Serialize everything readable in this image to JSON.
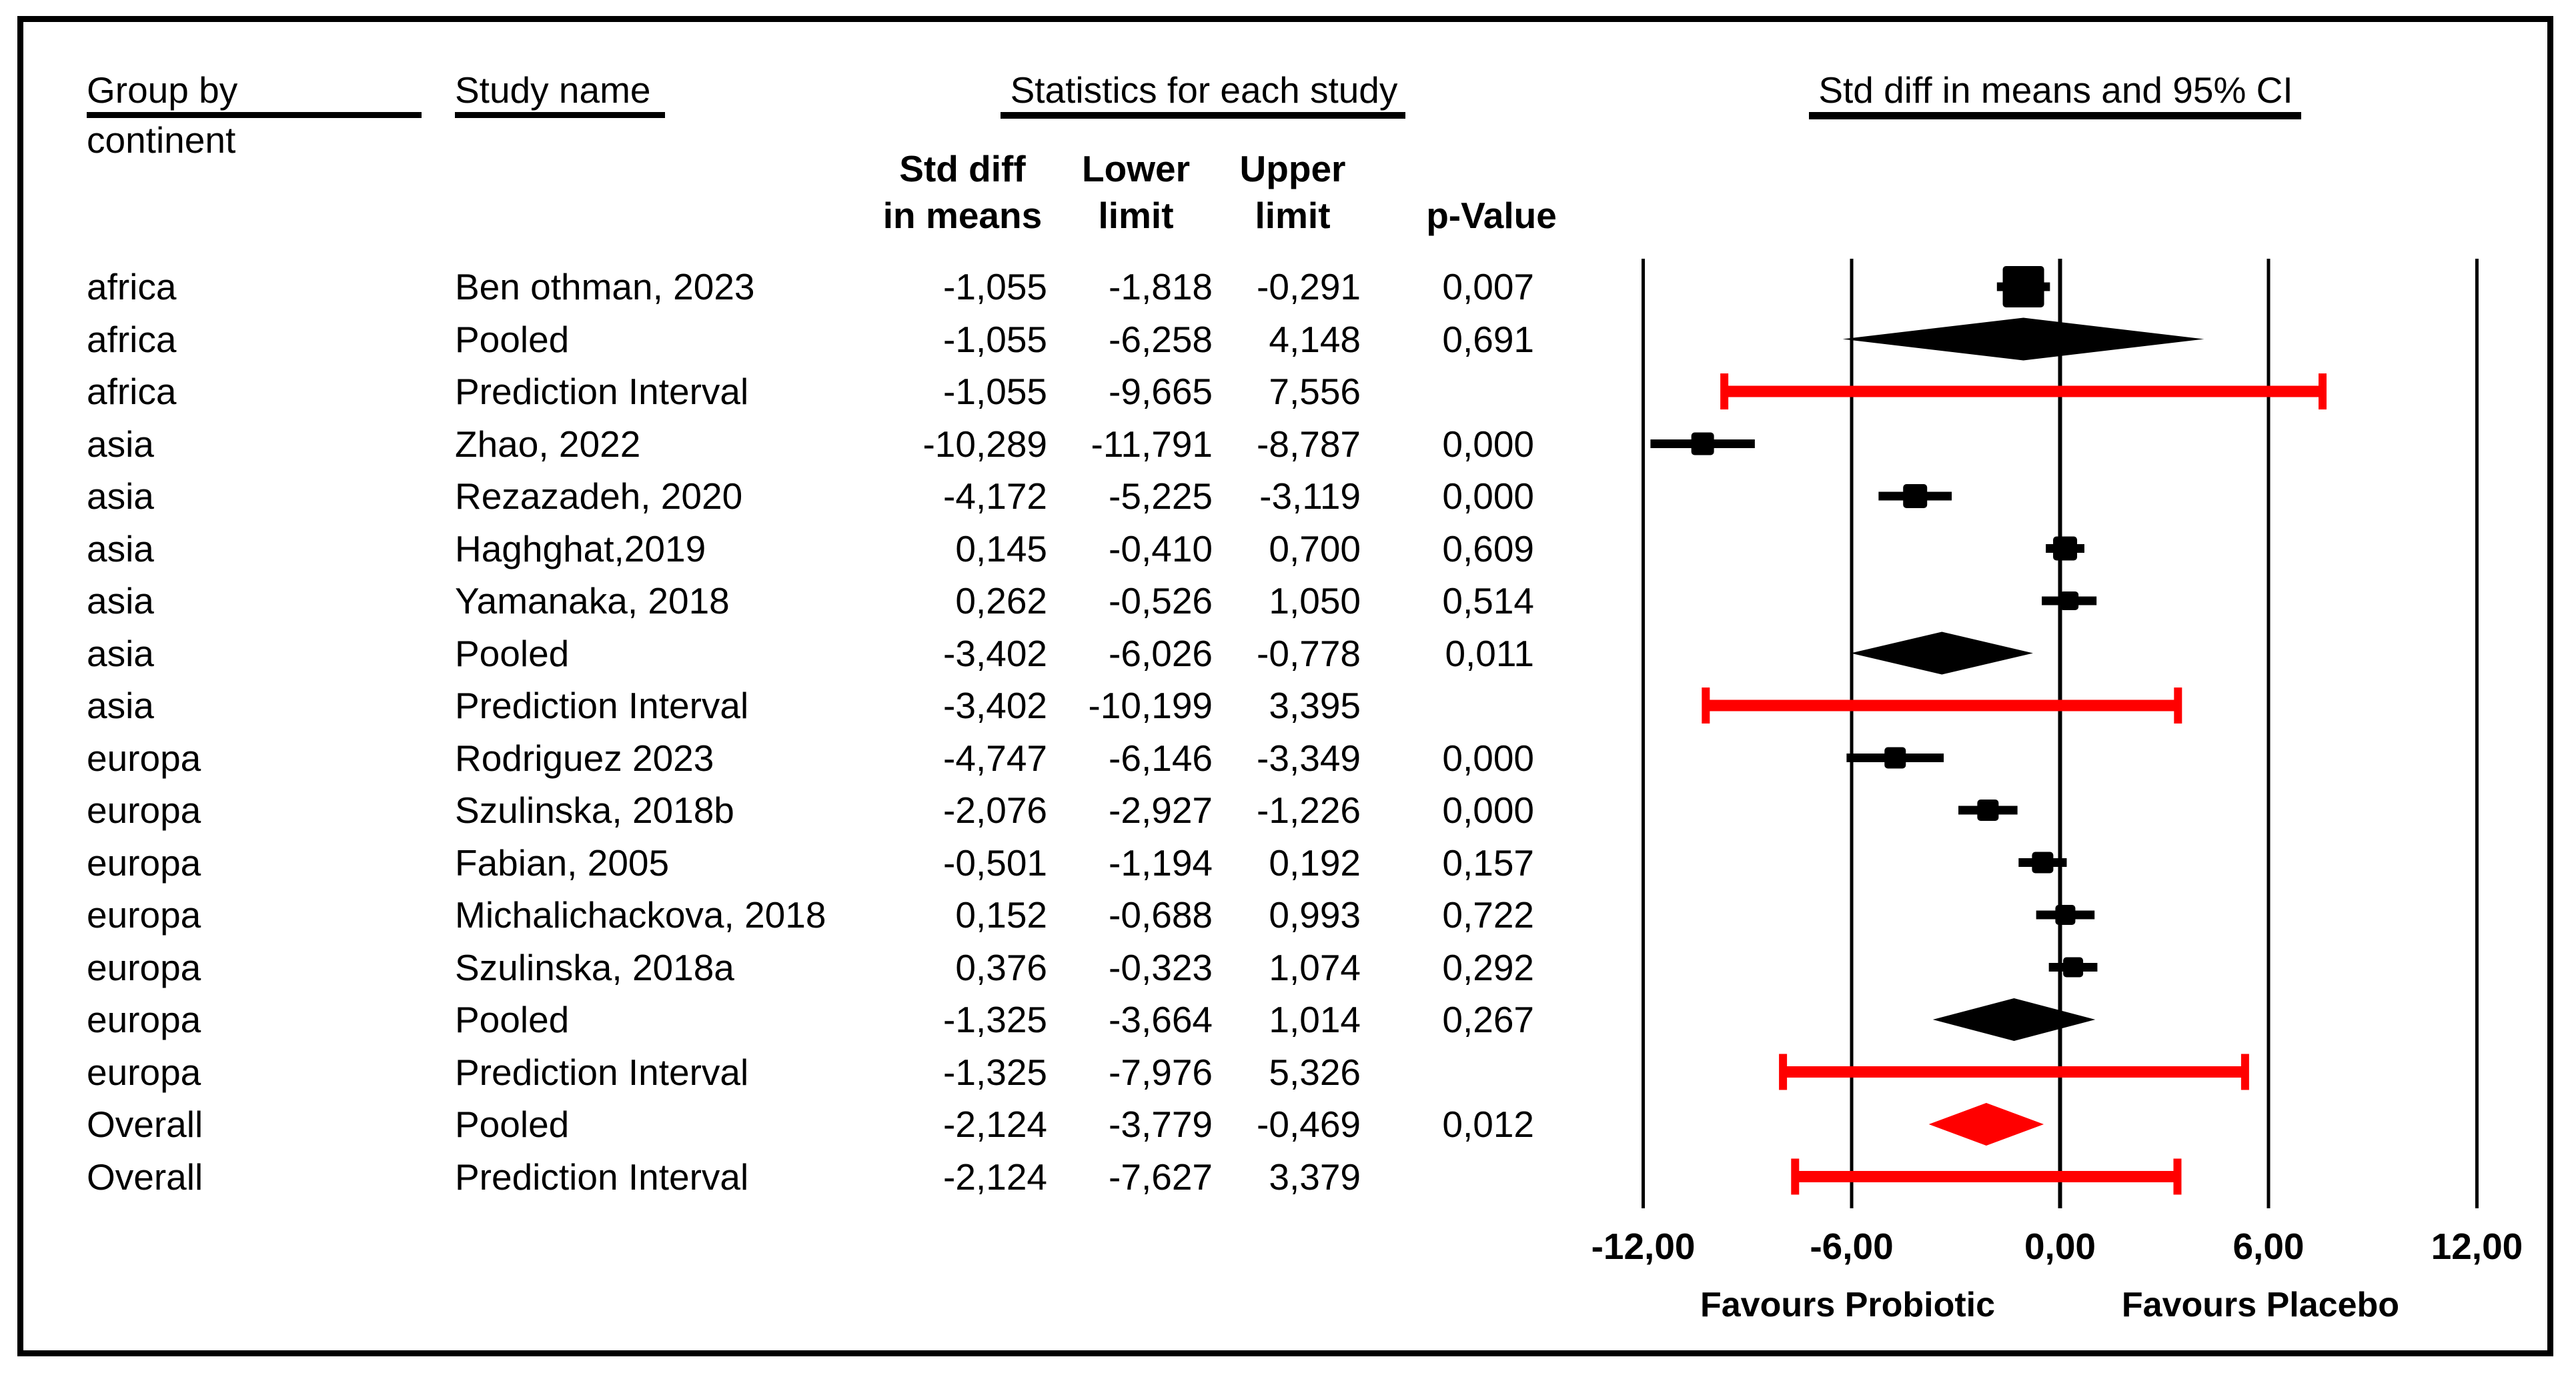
{
  "figure": {
    "header": {
      "group_by": "Group by",
      "group_by_line2": "continent",
      "study_name": "Study name",
      "stats_title": "Statistics for each study",
      "plot_title": "Std diff in means and 95% CI",
      "stat_columns": [
        {
          "line1": "Std diff",
          "line2": "in means"
        },
        {
          "line1": "Lower",
          "line2": "limit"
        },
        {
          "line1": "Upper",
          "line2": "limit"
        },
        {
          "line1": "",
          "line2": "p-Value"
        }
      ]
    },
    "colors": {
      "marker_black": "#000000",
      "highlight_red": "#FF0000",
      "background": "#FFFFFF",
      "text": "#000000"
    }
  },
  "chart_data": {
    "type": "forest",
    "title": "Std diff in means and 95% CI",
    "x_axis": {
      "min": -12,
      "max": 12,
      "tick_values": [
        -12,
        -6,
        0,
        6,
        12
      ],
      "tick_labels": [
        "-12,00",
        "-6,00",
        "0,00",
        "6,00",
        "12,00"
      ],
      "left_annotation": "Favours Probiotic",
      "right_annotation": "Favours Placebo",
      "grid": true
    },
    "rows": [
      {
        "group": "africa",
        "study": "Ben othman, 2023",
        "std_diff": -1.055,
        "lower": -1.818,
        "upper": -0.291,
        "labels": {
          "std_diff": "-1,055",
          "lower": "-1,818",
          "upper": "-0,291",
          "p": "0,007"
        },
        "row_type": "study",
        "marker_size": 62,
        "color": "#000000"
      },
      {
        "group": "africa",
        "study": "Pooled",
        "std_diff": -1.055,
        "lower": -6.258,
        "upper": 4.148,
        "labels": {
          "std_diff": "-1,055",
          "lower": "-6,258",
          "upper": "4,148",
          "p": "0,691"
        },
        "row_type": "pooled",
        "color": "#000000"
      },
      {
        "group": "africa",
        "study": "Prediction Interval",
        "std_diff": -1.055,
        "lower": -9.665,
        "upper": 7.556,
        "labels": {
          "std_diff": "-1,055",
          "lower": "-9,665",
          "upper": "7,556",
          "p": ""
        },
        "row_type": "prediction",
        "color": "#FF0000"
      },
      {
        "group": "asia",
        "study": "Zhao, 2022",
        "std_diff": -10.289,
        "lower": -11.791,
        "upper": -8.787,
        "labels": {
          "std_diff": "-10,289",
          "lower": "-11,791",
          "upper": "-8,787",
          "p": "0,000"
        },
        "row_type": "study",
        "marker_size": 34,
        "color": "#000000"
      },
      {
        "group": "asia",
        "study": "Rezazadeh, 2020",
        "std_diff": -4.172,
        "lower": -5.225,
        "upper": -3.119,
        "labels": {
          "std_diff": "-4,172",
          "lower": "-5,225",
          "upper": "-3,119",
          "p": "0,000"
        },
        "row_type": "study",
        "marker_size": 36,
        "color": "#000000"
      },
      {
        "group": "asia",
        "study": "Haghghat,2019",
        "std_diff": 0.145,
        "lower": -0.41,
        "upper": 0.7,
        "labels": {
          "std_diff": "0,145",
          "lower": "-0,410",
          "upper": "0,700",
          "p": "0,609"
        },
        "row_type": "study",
        "marker_size": 36,
        "color": "#000000"
      },
      {
        "group": "asia",
        "study": "Yamanaka, 2018",
        "std_diff": 0.262,
        "lower": -0.526,
        "upper": 1.05,
        "labels": {
          "std_diff": "0,262",
          "lower": "-0,526",
          "upper": "1,050",
          "p": "0,514"
        },
        "row_type": "study",
        "marker_size": 28,
        "color": "#000000"
      },
      {
        "group": "asia",
        "study": "Pooled",
        "std_diff": -3.402,
        "lower": -6.026,
        "upper": -0.778,
        "labels": {
          "std_diff": "-3,402",
          "lower": "-6,026",
          "upper": "-0,778",
          "p": "0,011"
        },
        "row_type": "pooled",
        "color": "#000000"
      },
      {
        "group": "asia",
        "study": "Prediction Interval",
        "std_diff": -3.402,
        "lower": -10.199,
        "upper": 3.395,
        "labels": {
          "std_diff": "-3,402",
          "lower": "-10,199",
          "upper": "3,395",
          "p": ""
        },
        "row_type": "prediction",
        "color": "#FF0000"
      },
      {
        "group": "europa",
        "study": "Rodriguez 2023",
        "std_diff": -4.747,
        "lower": -6.146,
        "upper": -3.349,
        "labels": {
          "std_diff": "-4,747",
          "lower": "-6,146",
          "upper": "-3,349",
          "p": "0,000"
        },
        "row_type": "study",
        "marker_size": 32,
        "color": "#000000"
      },
      {
        "group": "europa",
        "study": "Szulinska, 2018b",
        "std_diff": -2.076,
        "lower": -2.927,
        "upper": -1.226,
        "labels": {
          "std_diff": "-2,076",
          "lower": "-2,927",
          "upper": "-1,226",
          "p": "0,000"
        },
        "row_type": "study",
        "marker_size": 32,
        "color": "#000000"
      },
      {
        "group": "europa",
        "study": "Fabian, 2005",
        "std_diff": -0.501,
        "lower": -1.194,
        "upper": 0.192,
        "labels": {
          "std_diff": "-0,501",
          "lower": "-1,194",
          "upper": "0,192",
          "p": "0,157"
        },
        "row_type": "study",
        "marker_size": 32,
        "color": "#000000"
      },
      {
        "group": "europa",
        "study": "Michalichackova, 2018",
        "std_diff": 0.152,
        "lower": -0.688,
        "upper": 0.993,
        "labels": {
          "std_diff": "0,152",
          "lower": "-0,688",
          "upper": "0,993",
          "p": "0,722"
        },
        "row_type": "study",
        "marker_size": 30,
        "color": "#000000"
      },
      {
        "group": "europa",
        "study": "Szulinska, 2018a",
        "std_diff": 0.376,
        "lower": -0.323,
        "upper": 1.074,
        "labels": {
          "std_diff": "0,376",
          "lower": "-0,323",
          "upper": "1,074",
          "p": "0,292"
        },
        "row_type": "study",
        "marker_size": 30,
        "color": "#000000"
      },
      {
        "group": "europa",
        "study": "Pooled",
        "std_diff": -1.325,
        "lower": -3.664,
        "upper": 1.014,
        "labels": {
          "std_diff": "-1,325",
          "lower": "-3,664",
          "upper": "1,014",
          "p": "0,267"
        },
        "row_type": "pooled",
        "color": "#000000"
      },
      {
        "group": "europa",
        "study": "Prediction Interval",
        "std_diff": -1.325,
        "lower": -7.976,
        "upper": 5.326,
        "labels": {
          "std_diff": "-1,325",
          "lower": "-7,976",
          "upper": "5,326",
          "p": ""
        },
        "row_type": "prediction",
        "color": "#FF0000"
      },
      {
        "group": "Overall",
        "study": "Pooled",
        "std_diff": -2.124,
        "lower": -3.779,
        "upper": -0.469,
        "labels": {
          "std_diff": "-2,124",
          "lower": "-3,779",
          "upper": "-0,469",
          "p": "0,012"
        },
        "row_type": "pooled",
        "color": "#FF0000"
      },
      {
        "group": "Overall",
        "study": "Prediction Interval",
        "std_diff": -2.124,
        "lower": -7.627,
        "upper": 3.379,
        "labels": {
          "std_diff": "-2,124",
          "lower": "-7,627",
          "upper": "3,379",
          "p": ""
        },
        "row_type": "prediction",
        "color": "#FF0000"
      }
    ]
  }
}
